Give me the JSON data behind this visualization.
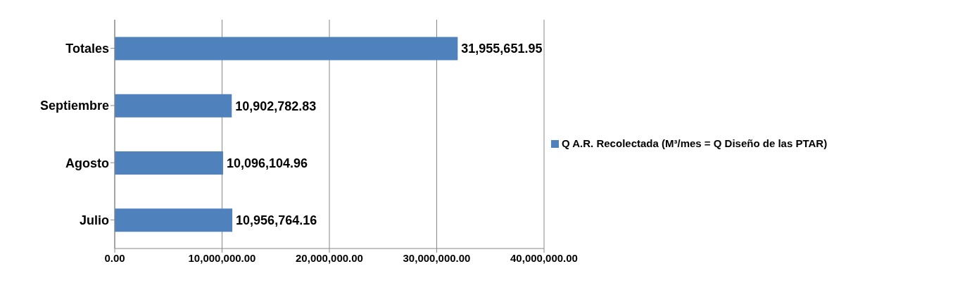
{
  "chart_data": {
    "type": "bar",
    "orientation": "horizontal",
    "categories": [
      "Totales",
      "Septiembre",
      "Agosto",
      "Julio"
    ],
    "series": [
      {
        "name": "Q A.R. Recolectada (M³/mes = Q Diseño de las PTAR)",
        "color": "#4f81bd",
        "values": [
          31955651.95,
          10902782.83,
          10096104.96,
          10956764.16
        ],
        "value_labels": [
          "31,955,651.95",
          "10,902,782.83",
          "10,096,104.96",
          "10,956,764.16"
        ]
      }
    ],
    "xlim": [
      0,
      40000000
    ],
    "xticks": [
      {
        "value": 0,
        "label": "0.00"
      },
      {
        "value": 10000000,
        "label": "10,000,000.00"
      },
      {
        "value": 20000000,
        "label": "20,000,000.00"
      },
      {
        "value": 30000000,
        "label": "30,000,000.00"
      },
      {
        "value": 40000000,
        "label": "40,000,000.00"
      }
    ],
    "grid": "x",
    "legend": "right"
  }
}
